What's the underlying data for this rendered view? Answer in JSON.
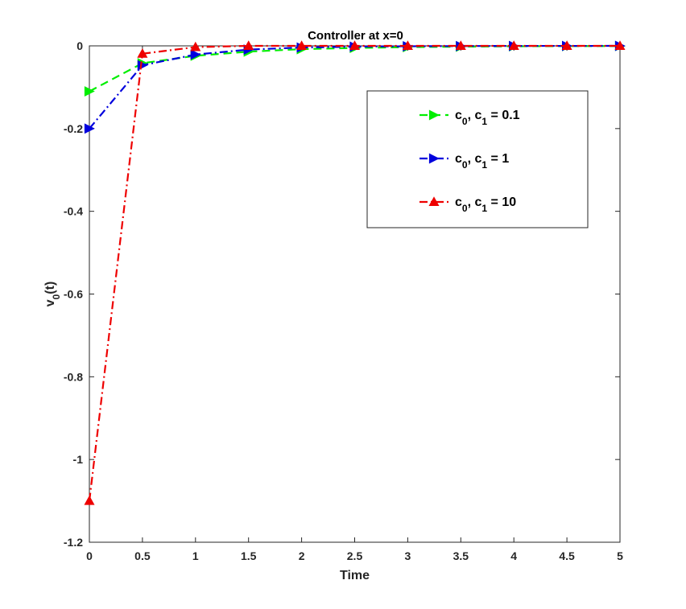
{
  "chart_data": {
    "type": "line",
    "title": "Controller at x=0",
    "xlabel": "Time",
    "ylabel": {
      "main": "v",
      "sub": "0",
      "tail": "(t)"
    },
    "xlim": [
      0,
      5
    ],
    "ylim": [
      -1.2,
      0
    ],
    "xticks": [
      0,
      0.5,
      1,
      1.5,
      2,
      2.5,
      3,
      3.5,
      4,
      4.5,
      5
    ],
    "xtick_labels": [
      "0",
      "0.5",
      "1",
      "1.5",
      "2",
      "2.5",
      "3",
      "3.5",
      "4",
      "4.5",
      "5"
    ],
    "yticks": [
      -1.2,
      -1,
      -0.8,
      -0.6,
      -0.4,
      -0.2,
      0
    ],
    "ytick_labels": [
      "-1.2",
      "-1",
      "-0.8",
      "-0.6",
      "-0.4",
      "-0.2",
      "0"
    ],
    "grid": false,
    "legend_position": "top-right",
    "x": [
      0,
      0.5,
      1,
      1.5,
      2,
      2.5,
      3,
      3.5,
      4,
      4.5,
      5
    ],
    "series": [
      {
        "legend": {
          "c0": "c",
          "c0_sub": "0",
          "c1": ", c",
          "c1_sub": "1",
          "rest": " = 0.1"
        },
        "color": "#00ee00",
        "line_style": "dashed",
        "marker": "triangle-right",
        "values": [
          -0.11,
          -0.042,
          -0.024,
          -0.014,
          -0.008,
          -0.005,
          -0.003,
          -0.002,
          -0.001,
          -0.0006,
          -0.0004
        ]
      },
      {
        "legend": {
          "c0": "c",
          "c0_sub": "0",
          "c1": ", c",
          "c1_sub": "1",
          "rest": " = 1"
        },
        "color": "#0000dd",
        "line_style": "dashdot",
        "marker": "triangle-right",
        "values": [
          -0.2,
          -0.047,
          -0.021,
          -0.009,
          -0.004,
          -0.002,
          -0.001,
          -0.0005,
          -0.0002,
          -0.0001,
          -5e-05
        ]
      },
      {
        "legend": {
          "c0": "c",
          "c0_sub": "0",
          "c1": ", c",
          "c1_sub": "1",
          "rest": " = 10"
        },
        "color": "#ee0000",
        "line_style": "dashdot",
        "marker": "triangle-up",
        "values": [
          -1.1,
          -0.019,
          -0.003,
          0,
          0,
          0,
          0,
          0,
          0,
          0,
          0
        ]
      }
    ]
  }
}
